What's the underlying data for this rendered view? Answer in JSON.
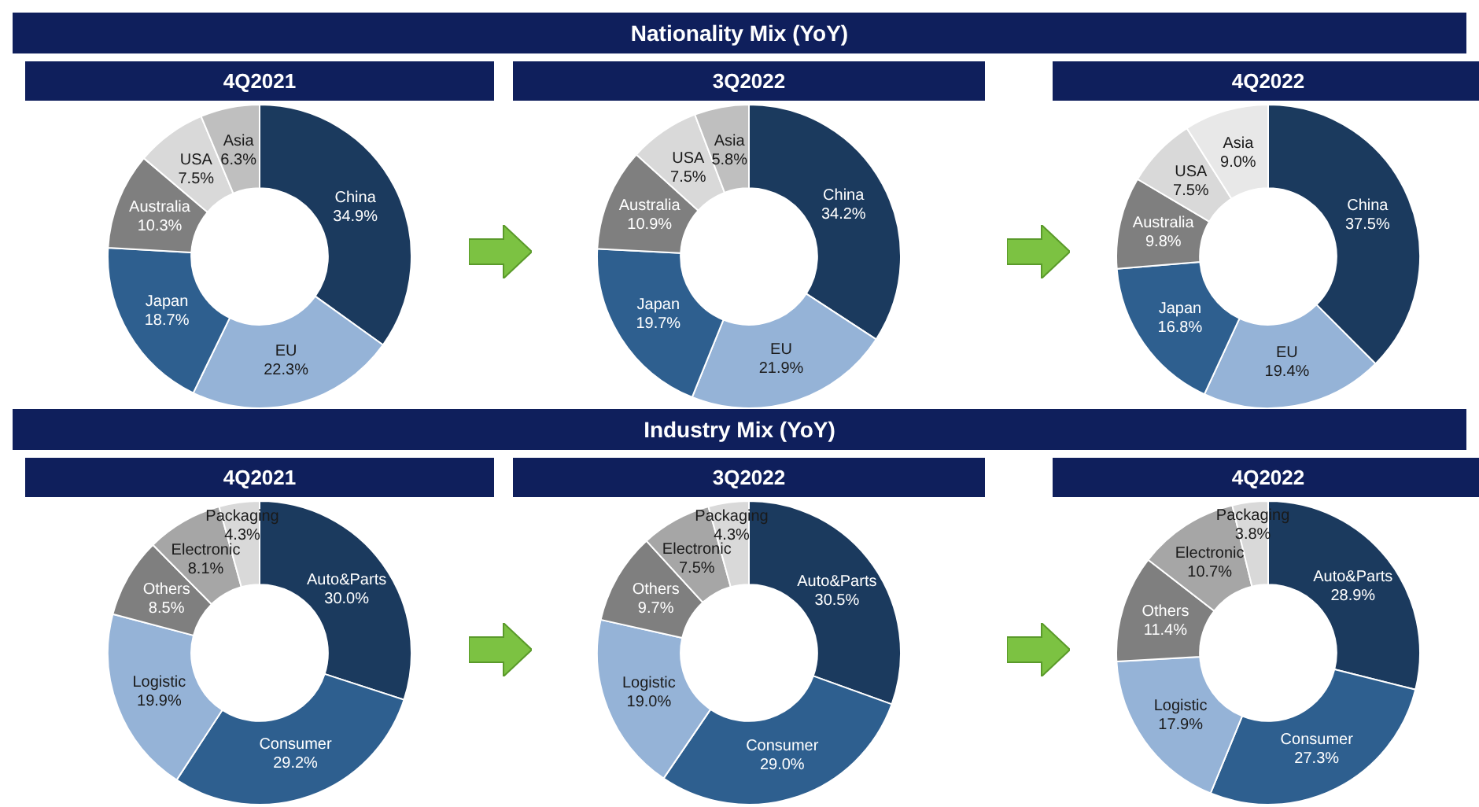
{
  "chart_data": [
    {
      "type": "other",
      "title": "Nationality Mix (YoY)"
    },
    {
      "type": "donut",
      "title": "4Q2021",
      "categories": [
        "China",
        "EU",
        "Japan",
        "Australia",
        "USA",
        "Asia"
      ],
      "values": [
        34.9,
        22.3,
        18.7,
        10.3,
        7.5,
        6.3
      ],
      "value_labels": [
        "34.9%",
        "22.3%",
        "18.7%",
        "10.3%",
        "7.5%",
        "6.3%"
      ],
      "colors": [
        "#1b3a5e",
        "#95b3d7",
        "#2e5f8f",
        "#7f7f7f",
        "#d9d9d9",
        "#bfbfbf"
      ],
      "legend": false
    },
    {
      "type": "donut",
      "title": "3Q2022",
      "categories": [
        "China",
        "EU",
        "Japan",
        "Australia",
        "USA",
        "Asia"
      ],
      "values": [
        34.2,
        21.9,
        19.7,
        10.9,
        7.5,
        5.8
      ],
      "value_labels": [
        "34.2%",
        "21.9%",
        "19.7%",
        "10.9%",
        "7.5%",
        "5.8%"
      ],
      "colors": [
        "#1b3a5e",
        "#95b3d7",
        "#2e5f8f",
        "#7f7f7f",
        "#d9d9d9",
        "#bfbfbf"
      ],
      "legend": false
    },
    {
      "type": "donut",
      "title": "4Q2022",
      "categories": [
        "China",
        "EU",
        "Japan",
        "Australia",
        "USA",
        "Asia"
      ],
      "values": [
        37.5,
        19.4,
        16.8,
        9.8,
        7.5,
        9.0
      ],
      "value_labels": [
        "37.5%",
        "19.4%",
        "16.8%",
        "9.8%",
        "7.5%",
        "9.0%"
      ],
      "colors": [
        "#1b3a5e",
        "#95b3d7",
        "#2e5f8f",
        "#7f7f7f",
        "#d9d9d9",
        "#e8e8e8"
      ],
      "legend": false
    },
    {
      "type": "other",
      "title": "Industry Mix (YoY)"
    },
    {
      "type": "donut",
      "title": "4Q2021",
      "categories": [
        "Auto&Parts",
        "Consumer",
        "Logistic",
        "Others",
        "Electronic",
        "Packaging"
      ],
      "values": [
        30.0,
        29.2,
        19.9,
        8.5,
        8.1,
        4.3
      ],
      "value_labels": [
        "30.0%",
        "29.2%",
        "19.9%",
        "8.5%",
        "8.1%",
        "4.3%"
      ],
      "colors": [
        "#1b3a5e",
        "#2e5f8f",
        "#95b3d7",
        "#7f7f7f",
        "#a6a6a6",
        "#d9d9d9"
      ],
      "legend": false
    },
    {
      "type": "donut",
      "title": "3Q2022",
      "categories": [
        "Auto&Parts",
        "Consumer",
        "Logistic",
        "Others",
        "Electronic",
        "Packaging"
      ],
      "values": [
        30.5,
        29.0,
        19.0,
        9.7,
        7.5,
        4.3
      ],
      "value_labels": [
        "30.5%",
        "29.0%",
        "19.0%",
        "9.7%",
        "7.5%",
        "4.3%"
      ],
      "colors": [
        "#1b3a5e",
        "#2e5f8f",
        "#95b3d7",
        "#7f7f7f",
        "#a6a6a6",
        "#d9d9d9"
      ],
      "legend": false
    },
    {
      "type": "donut",
      "title": "4Q2022",
      "categories": [
        "Auto&Parts",
        "Consumer",
        "Logistic",
        "Others",
        "Electronic",
        "Packaging"
      ],
      "values": [
        28.9,
        27.3,
        17.9,
        11.4,
        10.7,
        3.8
      ],
      "value_labels": [
        "28.9%",
        "27.3%",
        "17.9%",
        "11.4%",
        "10.7%",
        "3.8%"
      ],
      "colors": [
        "#1b3a5e",
        "#2e5f8f",
        "#95b3d7",
        "#7f7f7f",
        "#a6a6a6",
        "#d9d9d9"
      ],
      "legend": false
    }
  ]
}
